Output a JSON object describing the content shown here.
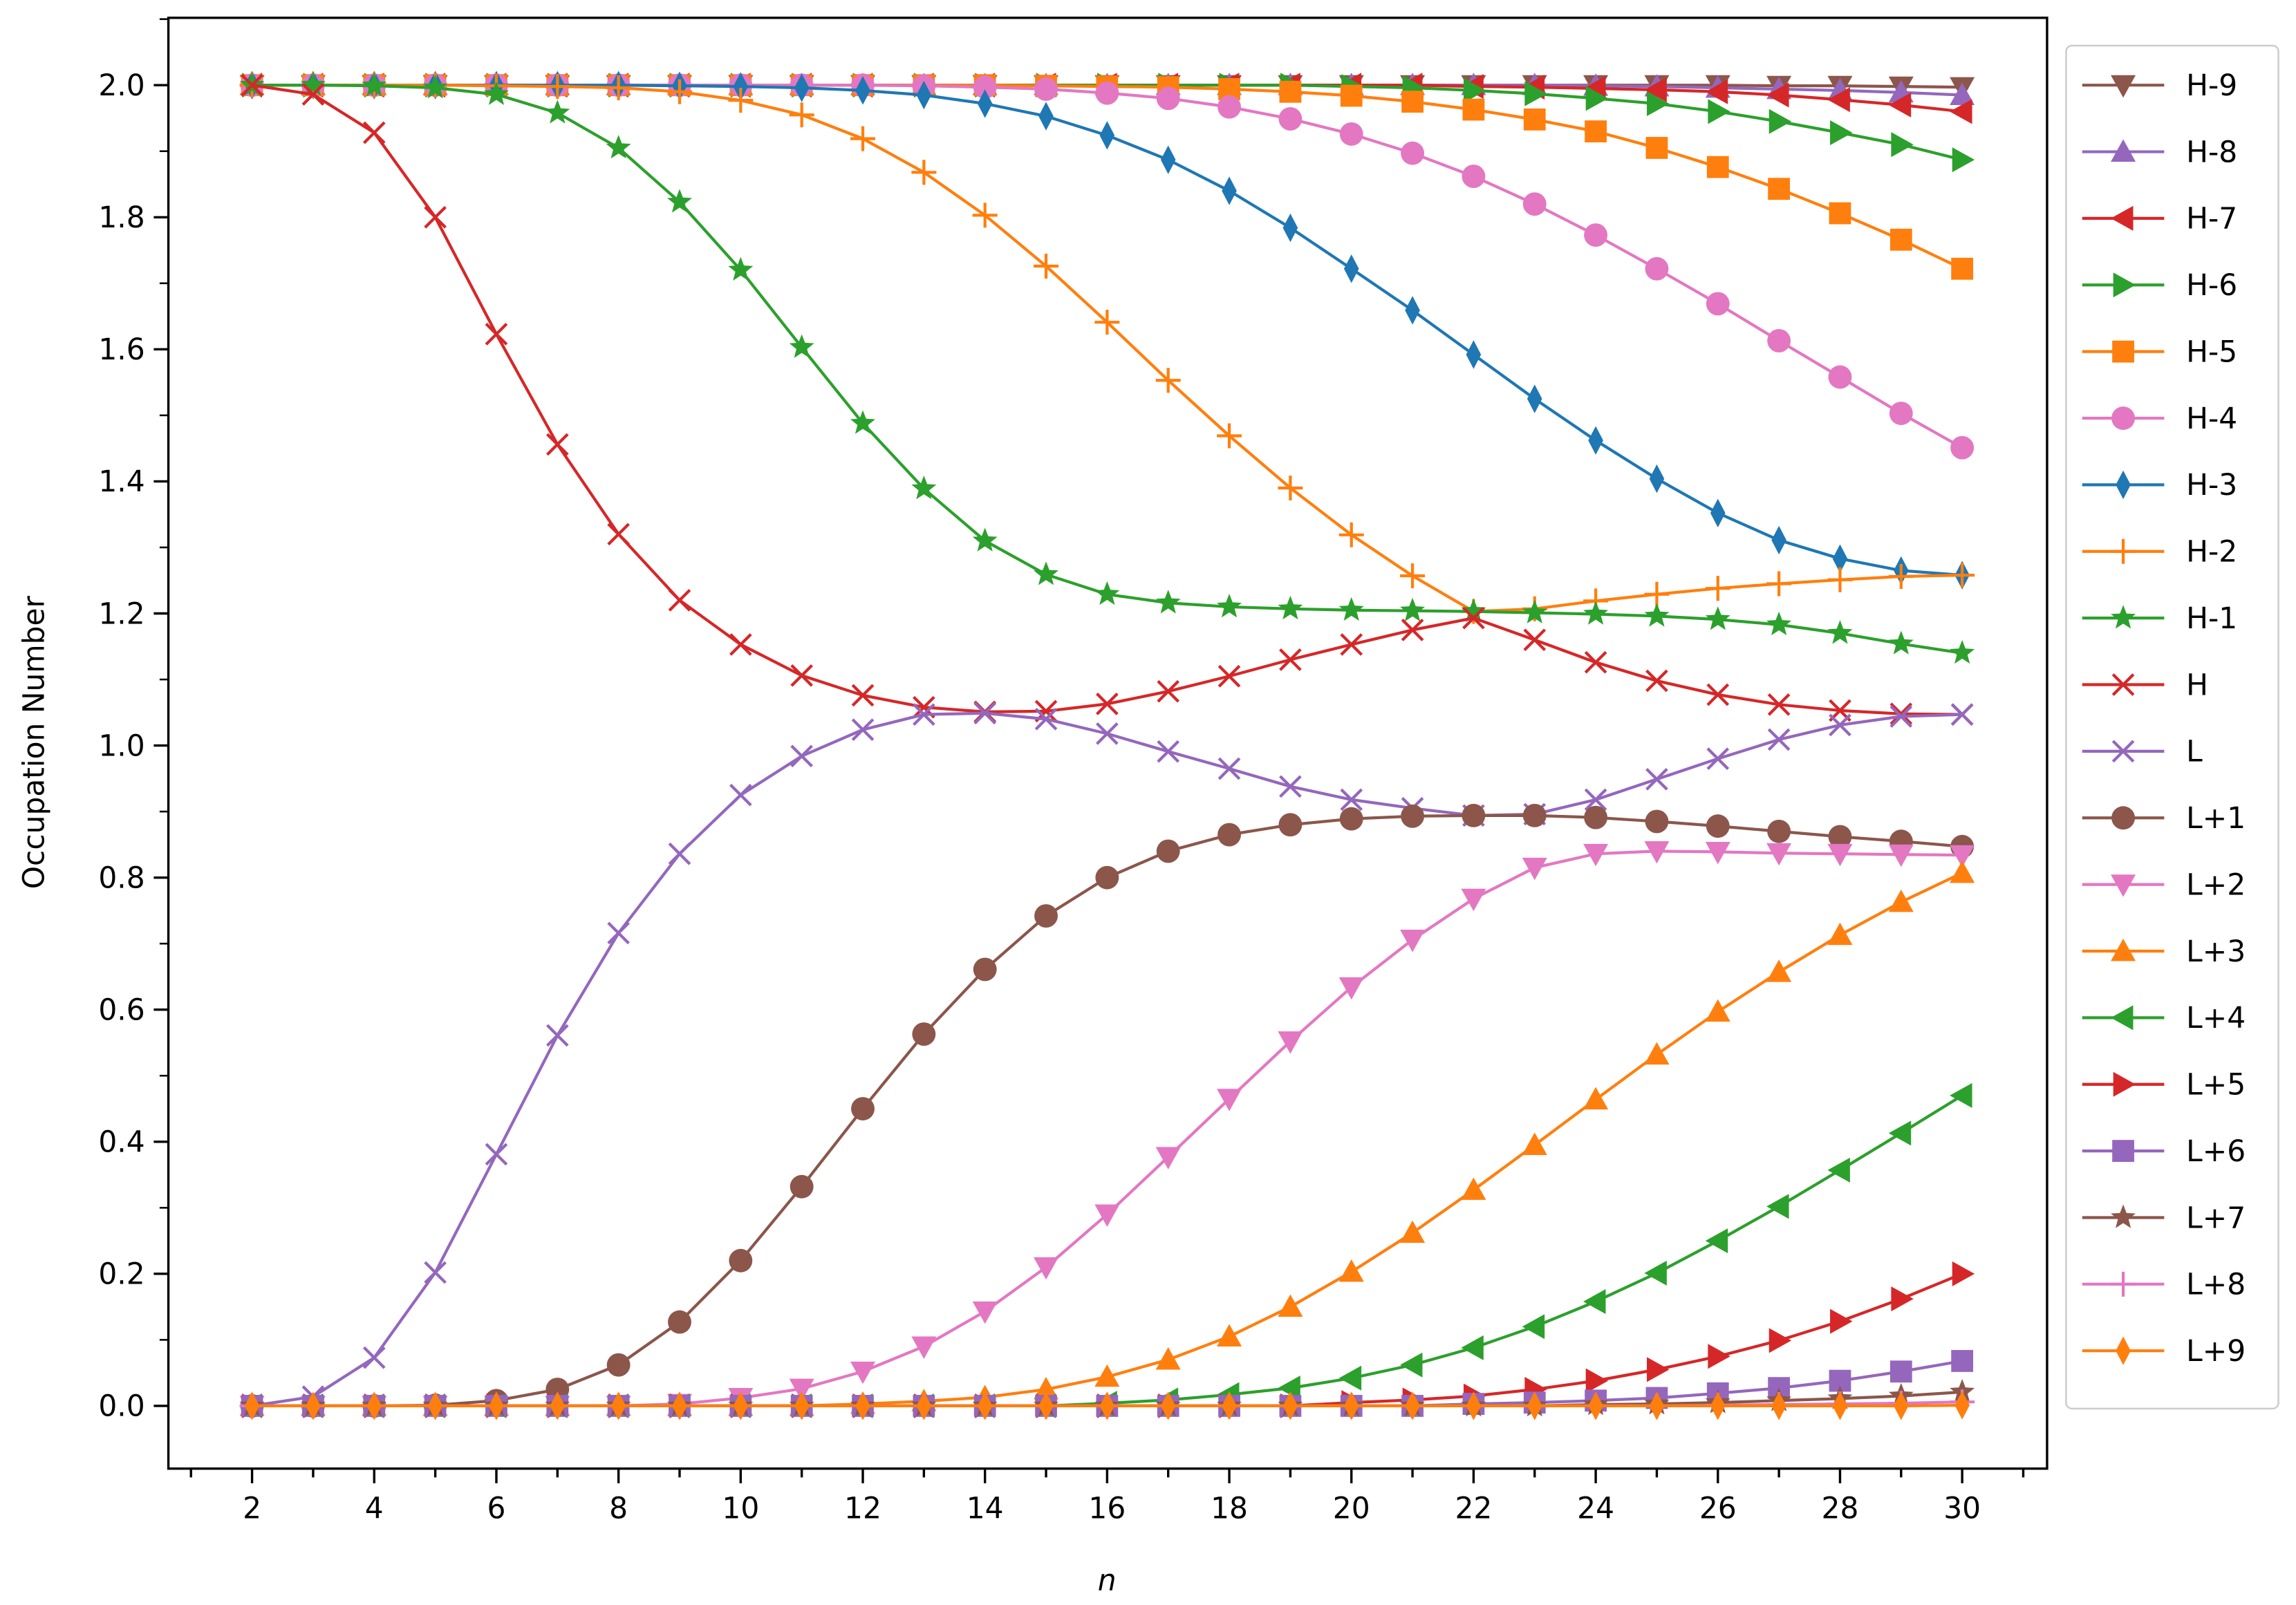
{
  "chart_data": {
    "type": "line",
    "title": "",
    "xlabel": "n",
    "ylabel": "Occupation Number",
    "xlim": [
      0.63,
      31.39
    ],
    "ylim": [
      -0.095,
      2.102
    ],
    "grid": false,
    "legend_position": "right-outside",
    "x": [
      2,
      3,
      4,
      5,
      6,
      7,
      8,
      9,
      10,
      11,
      12,
      13,
      14,
      15,
      16,
      17,
      18,
      19,
      20,
      21,
      22,
      23,
      24,
      25,
      26,
      27,
      28,
      29,
      30
    ],
    "xticks": [
      "2",
      "4",
      "6",
      "8",
      "10",
      "12",
      "14",
      "16",
      "18",
      "20",
      "22",
      "24",
      "26",
      "28",
      "30"
    ],
    "yticks": [
      "0.0",
      "0.2",
      "0.4",
      "0.6",
      "0.8",
      "1.0",
      "1.2",
      "1.4",
      "1.6",
      "1.8",
      "2.0"
    ],
    "series": [
      {
        "name": "H-9",
        "color": "#8c564b",
        "marker": "triangle-down",
        "values": [
          2,
          2,
          2,
          2,
          2,
          2,
          2,
          2,
          2,
          2,
          2,
          2,
          2,
          2,
          2,
          2,
          2,
          2,
          2,
          2,
          2,
          2,
          2,
          2,
          2,
          1.999,
          1.999,
          1.998,
          1.997
        ]
      },
      {
        "name": "H-8",
        "color": "#9467bd",
        "marker": "triangle-up",
        "values": [
          2,
          2,
          2,
          2,
          2,
          2,
          2,
          2,
          2,
          2,
          2,
          2,
          2,
          2,
          2,
          2,
          2,
          2,
          2,
          2,
          2,
          2,
          1.999,
          1.998,
          1.996,
          1.994,
          1.992,
          1.989,
          1.985
        ]
      },
      {
        "name": "H-7",
        "color": "#d62728",
        "marker": "triangle-left",
        "values": [
          2,
          2,
          2,
          2,
          2,
          2,
          2,
          2,
          2,
          2,
          2,
          2,
          2,
          2,
          2,
          2,
          2,
          2,
          2,
          2,
          1.998,
          1.997,
          1.995,
          1.993,
          1.99,
          1.985,
          1.978,
          1.97,
          1.96
        ]
      },
      {
        "name": "H-6",
        "color": "#2ca02c",
        "marker": "triangle-right",
        "values": [
          2,
          2,
          2,
          2,
          2,
          2,
          2,
          2,
          2,
          2,
          2,
          2,
          2,
          2,
          2,
          2,
          2,
          2,
          1.998,
          1.996,
          1.992,
          1.987,
          1.98,
          1.972,
          1.96,
          1.945,
          1.928,
          1.91,
          1.887
        ]
      },
      {
        "name": "H-5",
        "color": "#ff7f0e",
        "marker": "square",
        "values": [
          2,
          2,
          2,
          2,
          2,
          2,
          2,
          2,
          2,
          2,
          2,
          2,
          2,
          1.999,
          1.998,
          1.997,
          1.994,
          1.99,
          1.984,
          1.975,
          1.963,
          1.948,
          1.93,
          1.905,
          1.876,
          1.843,
          1.806,
          1.766,
          1.722
        ]
      },
      {
        "name": "H-4",
        "color": "#e377c2",
        "marker": "circle",
        "values": [
          2,
          2,
          2,
          2,
          2,
          2,
          2,
          2,
          2,
          2,
          2,
          1.999,
          1.997,
          1.994,
          1.988,
          1.98,
          1.967,
          1.949,
          1.926,
          1.897,
          1.862,
          1.82,
          1.773,
          1.722,
          1.669,
          1.613,
          1.558,
          1.503,
          1.451
        ]
      },
      {
        "name": "H-3",
        "color": "#1f77b4",
        "marker": "thin-diamond",
        "values": [
          2,
          2,
          2,
          2,
          2,
          2,
          2,
          1.999,
          1.998,
          1.996,
          1.992,
          1.985,
          1.972,
          1.953,
          1.924,
          1.887,
          1.84,
          1.784,
          1.722,
          1.659,
          1.592,
          1.525,
          1.462,
          1.404,
          1.352,
          1.311,
          1.283,
          1.265,
          1.258
        ]
      },
      {
        "name": "H-2",
        "color": "#ff7f0e",
        "marker": "plus",
        "values": [
          2,
          2,
          2,
          2,
          1.999,
          1.998,
          1.996,
          1.99,
          1.977,
          1.955,
          1.919,
          1.868,
          1.803,
          1.726,
          1.641,
          1.553,
          1.469,
          1.39,
          1.319,
          1.257,
          1.203,
          1.207,
          1.219,
          1.229,
          1.238,
          1.245,
          1.251,
          1.256,
          1.258
        ]
      },
      {
        "name": "H-1",
        "color": "#2ca02c",
        "marker": "star",
        "values": [
          2,
          2,
          1.999,
          1.996,
          1.986,
          1.958,
          1.905,
          1.823,
          1.72,
          1.603,
          1.488,
          1.389,
          1.31,
          1.259,
          1.229,
          1.216,
          1.21,
          1.207,
          1.205,
          1.204,
          1.203,
          1.201,
          1.199,
          1.196,
          1.191,
          1.183,
          1.17,
          1.154,
          1.14
        ]
      },
      {
        "name": "H",
        "color": "#d62728",
        "marker": "x",
        "values": [
          2,
          1.986,
          1.928,
          1.8,
          1.623,
          1.456,
          1.32,
          1.22,
          1.153,
          1.106,
          1.076,
          1.058,
          1.051,
          1.052,
          1.063,
          1.082,
          1.105,
          1.13,
          1.153,
          1.175,
          1.193,
          1.16,
          1.126,
          1.098,
          1.077,
          1.062,
          1.053,
          1.048,
          1.047
        ]
      },
      {
        "name": "L",
        "color": "#9467bd",
        "marker": "x",
        "values": [
          0,
          0.014,
          0.073,
          0.202,
          0.381,
          0.561,
          0.716,
          0.836,
          0.925,
          0.984,
          1.024,
          1.047,
          1.049,
          1.04,
          1.018,
          0.991,
          0.965,
          0.938,
          0.918,
          0.905,
          0.894,
          0.896,
          0.918,
          0.949,
          0.98,
          1.009,
          1.031,
          1.044,
          1.047
        ]
      },
      {
        "name": "L+1",
        "color": "#8c564b",
        "marker": "circle",
        "values": [
          0,
          0,
          0,
          0.001,
          0.008,
          0.025,
          0.062,
          0.127,
          0.22,
          0.332,
          0.45,
          0.563,
          0.661,
          0.742,
          0.8,
          0.84,
          0.865,
          0.88,
          0.889,
          0.893,
          0.894,
          0.894,
          0.891,
          0.885,
          0.878,
          0.87,
          0.862,
          0.855,
          0.847
        ]
      },
      {
        "name": "L+2",
        "color": "#e377c2",
        "marker": "triangle-down",
        "values": [
          0,
          0,
          0,
          0,
          0,
          0,
          0,
          0.003,
          0.012,
          0.026,
          0.052,
          0.09,
          0.143,
          0.21,
          0.29,
          0.377,
          0.465,
          0.552,
          0.634,
          0.706,
          0.768,
          0.815,
          0.836,
          0.84,
          0.839,
          0.837,
          0.836,
          0.835,
          0.834
        ]
      },
      {
        "name": "L+3",
        "color": "#ff7f0e",
        "marker": "triangle-up",
        "values": [
          0,
          0,
          0,
          0,
          0,
          0,
          0,
          0,
          0,
          0,
          0.003,
          0.007,
          0.013,
          0.025,
          0.044,
          0.07,
          0.105,
          0.15,
          0.203,
          0.262,
          0.327,
          0.395,
          0.464,
          0.532,
          0.597,
          0.657,
          0.713,
          0.763,
          0.807
        ]
      },
      {
        "name": "L+4",
        "color": "#2ca02c",
        "marker": "triangle-left",
        "values": [
          0,
          0,
          0,
          0,
          0,
          0,
          0,
          0,
          0,
          0,
          0,
          0,
          0,
          0,
          0.004,
          0.009,
          0.017,
          0.027,
          0.042,
          0.062,
          0.088,
          0.12,
          0.158,
          0.201,
          0.25,
          0.302,
          0.357,
          0.413,
          0.47
        ]
      },
      {
        "name": "L+5",
        "color": "#d62728",
        "marker": "triangle-right",
        "values": [
          0,
          0,
          0,
          0,
          0,
          0,
          0,
          0,
          0,
          0,
          0,
          0,
          0,
          0,
          0,
          0,
          0,
          0,
          0.005,
          0.009,
          0.015,
          0.025,
          0.038,
          0.055,
          0.075,
          0.099,
          0.128,
          0.162,
          0.2
        ]
      },
      {
        "name": "L+6",
        "color": "#9467bd",
        "marker": "square",
        "values": [
          0,
          0,
          0,
          0,
          0,
          0,
          0,
          0,
          0,
          0,
          0,
          0,
          0,
          0,
          0,
          0,
          0,
          0,
          0,
          0,
          0.003,
          0.005,
          0.008,
          0.012,
          0.019,
          0.027,
          0.038,
          0.052,
          0.068
        ]
      },
      {
        "name": "L+7",
        "color": "#8c564b",
        "marker": "star",
        "values": [
          0,
          0,
          0,
          0,
          0,
          0,
          0,
          0,
          0,
          0,
          0,
          0,
          0,
          0,
          0,
          0,
          0,
          0,
          0,
          0,
          0,
          0,
          0.002,
          0.003,
          0.005,
          0.008,
          0.011,
          0.015,
          0.021
        ]
      },
      {
        "name": "L+8",
        "color": "#e377c2",
        "marker": "plus",
        "values": [
          0,
          0,
          0,
          0,
          0,
          0,
          0,
          0,
          0,
          0,
          0,
          0,
          0,
          0,
          0,
          0,
          0,
          0,
          0,
          0,
          0,
          0,
          0,
          0,
          0.001,
          0.002,
          0.003,
          0.004,
          0.006
        ]
      },
      {
        "name": "L+9",
        "color": "#ff7f0e",
        "marker": "thin-diamond",
        "values": [
          0,
          0,
          0,
          0,
          0,
          0,
          0,
          0,
          0,
          0,
          0,
          0,
          0,
          0,
          0,
          0,
          0,
          0,
          0,
          0,
          0,
          0,
          0,
          0,
          0,
          0,
          0,
          0,
          0.001
        ]
      }
    ]
  }
}
